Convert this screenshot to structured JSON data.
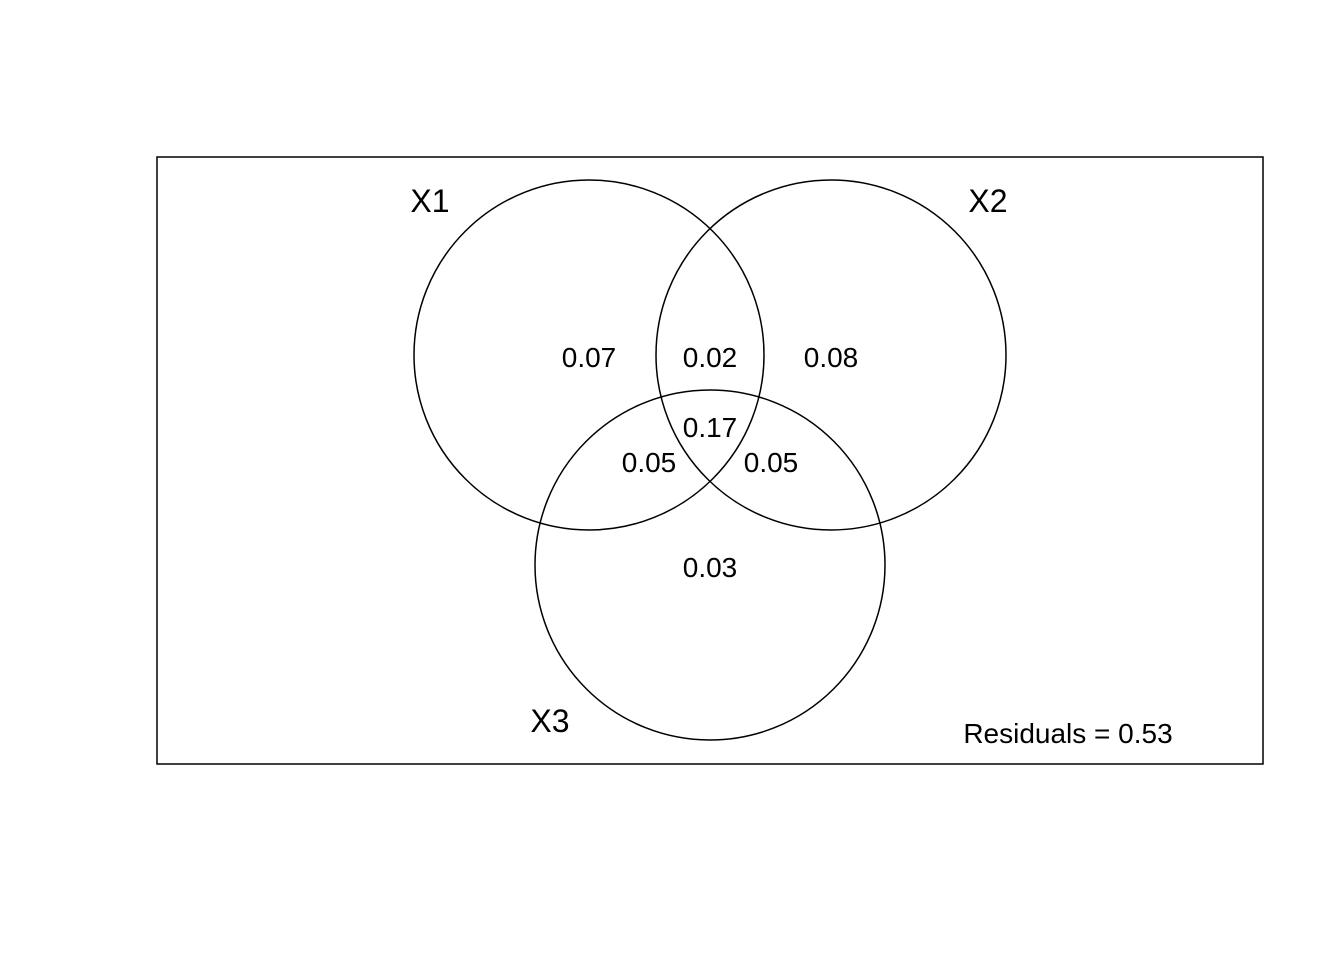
{
  "sets": [
    {
      "id": "x1",
      "label": "X1"
    },
    {
      "id": "x2",
      "label": "X2"
    },
    {
      "id": "x3",
      "label": "X3"
    }
  ],
  "regions": {
    "x1_only": "0.07",
    "x1_x2": "0.02",
    "x2_only": "0.08",
    "x1_x2_x3": "0.17",
    "x1_x3": "0.05",
    "x2_x3": "0.05",
    "x3_only": "0.03"
  },
  "residuals": "Residuals = 0.53",
  "colors": {
    "stroke": "#000000",
    "background": "#ffffff"
  }
}
